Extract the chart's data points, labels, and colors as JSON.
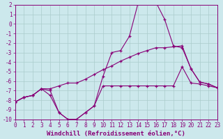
{
  "xlabel": "Windchill (Refroidissement éolien,°C)",
  "bg_color": "#cce8ec",
  "grid_color": "#aacccc",
  "line_color": "#880077",
  "xlim": [
    0,
    23
  ],
  "ylim": [
    -10,
    2
  ],
  "x": [
    0,
    1,
    2,
    3,
    4,
    5,
    6,
    7,
    8,
    9,
    10,
    11,
    12,
    13,
    14,
    15,
    16,
    17,
    18,
    19,
    20,
    21,
    22,
    23
  ],
  "line1_y": [
    -8.2,
    -7.7,
    -7.5,
    -6.8,
    -7.0,
    -9.3,
    -10.0,
    -10.0,
    -9.3,
    -8.6,
    -6.5,
    -6.5,
    -6.5,
    -6.5,
    -6.5,
    -6.5,
    -6.5,
    -6.5,
    -6.5,
    -4.5,
    -6.2,
    -6.3,
    -6.5,
    -6.7
  ],
  "line2_y": [
    -8.2,
    -7.7,
    -7.5,
    -6.8,
    -7.5,
    -9.3,
    -10.0,
    -10.0,
    -9.3,
    -8.6,
    -5.5,
    -3.0,
    -2.8,
    -1.3,
    2.2,
    2.3,
    2.3,
    0.5,
    -2.3,
    -2.5,
    -4.7,
    -6.1,
    -6.3,
    -6.7
  ],
  "line3_y": [
    -8.2,
    -7.7,
    -7.5,
    -6.8,
    -6.8,
    -6.5,
    -6.2,
    -6.2,
    -5.8,
    -5.3,
    -4.8,
    -4.4,
    -3.9,
    -3.5,
    -3.1,
    -2.8,
    -2.5,
    -2.5,
    -2.4,
    -2.3,
    -4.7,
    -6.1,
    -6.3,
    -6.7
  ],
  "xtick_fontsize": 5.5,
  "ytick_fontsize": 6,
  "xlabel_fontsize": 6.5
}
